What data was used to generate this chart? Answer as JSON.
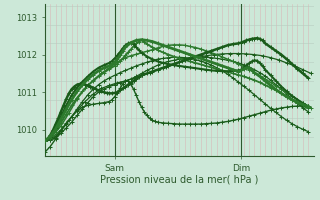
{
  "xlabel": "Pression niveau de la mer( hPa )",
  "bg_color": "#cce8d8",
  "grid_color_v": "#d8b8b8",
  "grid_color_h": "#b8ccc0",
  "line_color_dark": "#1a5c1a",
  "line_color_mid": "#2d7a2d",
  "ylim": [
    1009.3,
    1013.35
  ],
  "xlim": [
    0,
    100
  ],
  "sam_x": 26,
  "dim_x": 73,
  "tick_color": "#2d5a2d",
  "yticks": [
    1010,
    1011,
    1012,
    1013
  ],
  "series": [
    {
      "color": "#1a5c1a",
      "lw": 0.9,
      "x": [
        0,
        2,
        4,
        6,
        8,
        10,
        12,
        14,
        16,
        18,
        20,
        22,
        24,
        26,
        28,
        30,
        32,
        34,
        36,
        38,
        40,
        42,
        44,
        46,
        48,
        50,
        52,
        54,
        56,
        58,
        60,
        62,
        64,
        66,
        68,
        70,
        72,
        74,
        76,
        78,
        80,
        82,
        84,
        86,
        88,
        90,
        92,
        94,
        96,
        98
      ],
      "y": [
        1009.7,
        1009.72,
        1009.78,
        1009.9,
        1010.05,
        1010.2,
        1010.38,
        1010.55,
        1010.72,
        1010.88,
        1011.0,
        1011.08,
        1011.15,
        1011.2,
        1011.25,
        1011.3,
        1011.35,
        1011.42,
        1011.5,
        1011.58,
        1011.65,
        1011.72,
        1011.78,
        1011.82,
        1011.85,
        1011.88,
        1011.9,
        1011.92,
        1011.93,
        1011.93,
        1011.93,
        1011.92,
        1011.9,
        1011.88,
        1011.85,
        1011.82,
        1011.78,
        1011.73,
        1011.67,
        1011.6,
        1011.52,
        1011.43,
        1011.32,
        1011.2,
        1011.08,
        1010.95,
        1010.82,
        1010.7,
        1010.58,
        1010.48
      ]
    },
    {
      "color": "#1a5c1a",
      "lw": 0.9,
      "x": [
        0,
        2,
        4,
        6,
        8,
        10,
        12,
        14,
        16,
        18,
        20,
        22,
        24,
        26,
        28,
        30,
        32,
        34,
        36,
        38,
        40,
        42,
        44,
        46,
        48,
        50,
        52,
        54,
        56,
        58,
        60,
        62,
        64,
        66,
        68,
        70,
        72,
        74,
        76,
        78,
        80,
        82,
        84,
        86,
        88,
        90,
        92,
        94,
        96,
        98
      ],
      "y": [
        1009.7,
        1009.73,
        1009.82,
        1009.97,
        1010.15,
        1010.35,
        1010.55,
        1010.75,
        1010.93,
        1011.08,
        1011.2,
        1011.3,
        1011.38,
        1011.45,
        1011.52,
        1011.58,
        1011.64,
        1011.7,
        1011.75,
        1011.8,
        1011.84,
        1011.88,
        1011.9,
        1011.92,
        1011.93,
        1011.93,
        1011.92,
        1011.9,
        1011.87,
        1011.83,
        1011.78,
        1011.72,
        1011.65,
        1011.57,
        1011.48,
        1011.38,
        1011.27,
        1011.16,
        1011.05,
        1010.93,
        1010.81,
        1010.69,
        1010.57,
        1010.46,
        1010.35,
        1010.25,
        1010.16,
        1010.08,
        1010.01,
        1009.95
      ]
    },
    {
      "color": "#1a5c1a",
      "lw": 0.9,
      "x": [
        0,
        3,
        6,
        9,
        12,
        15,
        18,
        21,
        24,
        27,
        30,
        33,
        36,
        39,
        42,
        45,
        48,
        51,
        54,
        57,
        60,
        63,
        66,
        69,
        72,
        75,
        78,
        81,
        84,
        87,
        90,
        93,
        96,
        99
      ],
      "y": [
        1009.7,
        1009.8,
        1010.0,
        1010.25,
        1010.52,
        1010.75,
        1010.95,
        1011.1,
        1011.18,
        1011.25,
        1011.3,
        1011.37,
        1011.45,
        1011.52,
        1011.6,
        1011.68,
        1011.75,
        1011.82,
        1011.88,
        1011.93,
        1011.97,
        1012.0,
        1012.02,
        1012.03,
        1012.03,
        1012.02,
        1012.0,
        1011.97,
        1011.92,
        1011.86,
        1011.78,
        1011.7,
        1011.6,
        1011.5
      ]
    },
    {
      "color": "#2d7a2d",
      "lw": 1.1,
      "x": [
        0,
        3,
        6,
        9,
        12,
        15,
        18,
        21,
        24,
        27,
        30,
        32,
        34,
        36,
        38,
        40,
        42,
        44,
        46,
        48,
        50,
        52,
        54,
        56,
        58,
        60,
        62,
        64,
        66,
        68,
        70,
        72,
        74,
        76,
        78,
        80,
        82,
        84,
        86,
        88,
        90,
        92,
        94,
        96,
        99
      ],
      "y": [
        1009.7,
        1009.85,
        1010.1,
        1010.45,
        1010.82,
        1011.1,
        1011.32,
        1011.5,
        1011.65,
        1011.8,
        1011.92,
        1011.97,
        1012.01,
        1012.05,
        1012.09,
        1012.13,
        1012.18,
        1012.22,
        1012.25,
        1012.26,
        1012.26,
        1012.25,
        1012.22,
        1012.19,
        1012.15,
        1012.1,
        1012.05,
        1012.0,
        1011.94,
        1011.88,
        1011.82,
        1011.75,
        1011.68,
        1011.6,
        1011.52,
        1011.44,
        1011.35,
        1011.26,
        1011.17,
        1011.08,
        1010.99,
        1010.9,
        1010.8,
        1010.72,
        1010.58
      ]
    },
    {
      "color": "#2d7a2d",
      "lw": 1.3,
      "x": [
        0,
        2,
        4,
        6,
        8,
        10,
        12,
        14,
        16,
        18,
        20,
        22,
        24,
        26,
        27,
        28,
        29,
        30,
        31,
        32,
        33,
        34,
        35,
        36,
        37,
        38,
        40,
        42,
        44,
        46,
        48,
        50,
        52,
        54,
        56,
        58,
        60,
        62,
        64,
        66,
        68,
        70,
        72,
        74,
        76,
        78,
        80,
        82,
        84,
        86,
        88,
        90,
        92,
        94,
        96,
        98
      ],
      "y": [
        1009.7,
        1009.78,
        1009.95,
        1010.18,
        1010.42,
        1010.65,
        1010.85,
        1011.02,
        1011.18,
        1011.3,
        1011.42,
        1011.52,
        1011.62,
        1011.7,
        1011.76,
        1011.83,
        1011.9,
        1011.98,
        1012.06,
        1012.14,
        1012.22,
        1012.3,
        1012.35,
        1012.38,
        1012.35,
        1012.28,
        1012.2,
        1012.12,
        1012.06,
        1012.0,
        1011.95,
        1011.9,
        1011.86,
        1011.82,
        1011.78,
        1011.74,
        1011.7,
        1011.66,
        1011.62,
        1011.58,
        1011.54,
        1011.5,
        1011.46,
        1011.42,
        1011.37,
        1011.32,
        1011.26,
        1011.19,
        1011.12,
        1011.05,
        1010.97,
        1010.88,
        1010.79,
        1010.71,
        1010.63,
        1010.57
      ]
    },
    {
      "color": "#1a5c1a",
      "lw": 1.5,
      "x": [
        0,
        2,
        4,
        6,
        8,
        10,
        12,
        14,
        16,
        18,
        20,
        22,
        24,
        25,
        26,
        27,
        28,
        29,
        30,
        31,
        32,
        33,
        34,
        35,
        36,
        38,
        40,
        42,
        44,
        46,
        48,
        50,
        52,
        54,
        56,
        58,
        60,
        62,
        64,
        66,
        68,
        70,
        72,
        73,
        74,
        75,
        76,
        77,
        78,
        79,
        80,
        81,
        82,
        84,
        86,
        88,
        90,
        92,
        94,
        96,
        98
      ],
      "y": [
        1009.7,
        1009.82,
        1010.05,
        1010.35,
        1010.65,
        1010.92,
        1011.12,
        1011.28,
        1011.42,
        1011.55,
        1011.65,
        1011.72,
        1011.78,
        1011.83,
        1011.9,
        1011.98,
        1012.07,
        1012.17,
        1012.25,
        1012.3,
        1012.32,
        1012.28,
        1012.2,
        1012.12,
        1012.05,
        1011.95,
        1011.88,
        1011.82,
        1011.78,
        1011.75,
        1011.72,
        1011.7,
        1011.68,
        1011.66,
        1011.64,
        1011.62,
        1011.6,
        1011.58,
        1011.57,
        1011.56,
        1011.56,
        1011.57,
        1011.58,
        1011.6,
        1011.65,
        1011.72,
        1011.77,
        1011.82,
        1011.85,
        1011.84,
        1011.78,
        1011.7,
        1011.6,
        1011.45,
        1011.3,
        1011.15,
        1011.02,
        1010.9,
        1010.8,
        1010.7,
        1010.62
      ]
    },
    {
      "color": "#1a5c1a",
      "lw": 1.8,
      "x": [
        0,
        1,
        2,
        3,
        4,
        5,
        6,
        7,
        8,
        9,
        10,
        11,
        12,
        13,
        14,
        15,
        16,
        17,
        18,
        19,
        20,
        21,
        22,
        23,
        24,
        25,
        26,
        27,
        28,
        29,
        30,
        31,
        32,
        33,
        34,
        35,
        36,
        38,
        40,
        42,
        44,
        46,
        48,
        50,
        52,
        54,
        56,
        58,
        60,
        62,
        64,
        66,
        68,
        70,
        72,
        73,
        74,
        75,
        76,
        77,
        78,
        79,
        80,
        81,
        82,
        84,
        86,
        88,
        90,
        92,
        94,
        96,
        98
      ],
      "y": [
        1009.7,
        1009.75,
        1009.85,
        1009.98,
        1010.14,
        1010.3,
        1010.48,
        1010.65,
        1010.82,
        1010.97,
        1011.08,
        1011.15,
        1011.2,
        1011.22,
        1011.22,
        1011.2,
        1011.18,
        1011.15,
        1011.12,
        1011.08,
        1011.05,
        1011.02,
        1011.0,
        1010.98,
        1010.97,
        1010.97,
        1010.98,
        1011.0,
        1011.05,
        1011.1,
        1011.15,
        1011.2,
        1011.25,
        1011.3,
        1011.35,
        1011.4,
        1011.45,
        1011.5,
        1011.55,
        1011.6,
        1011.65,
        1011.7,
        1011.75,
        1011.8,
        1011.85,
        1011.9,
        1011.95,
        1012.0,
        1012.05,
        1012.1,
        1012.15,
        1012.2,
        1012.25,
        1012.28,
        1012.3,
        1012.32,
        1012.35,
        1012.38,
        1012.4,
        1012.42,
        1012.43,
        1012.44,
        1012.42,
        1012.38,
        1012.3,
        1012.2,
        1012.1,
        1012.0,
        1011.88,
        1011.75,
        1011.62,
        1011.5,
        1011.38
      ]
    },
    {
      "color": "#1a5c1a",
      "lw": 1.0,
      "x": [
        0,
        2,
        4,
        6,
        8,
        10,
        12,
        14,
        16,
        18,
        20,
        22,
        24,
        25,
        26,
        27,
        28,
        29,
        30,
        31,
        32,
        33,
        34,
        35,
        36,
        37,
        38,
        39,
        40,
        41,
        42,
        44,
        46,
        48,
        50,
        52,
        54,
        56,
        58,
        60,
        62,
        64,
        66,
        68,
        70,
        72,
        74,
        76,
        78,
        80,
        82,
        84,
        86,
        88,
        90,
        92,
        94,
        96,
        98
      ],
      "y": [
        1009.4,
        1009.55,
        1009.75,
        1009.97,
        1010.18,
        1010.35,
        1010.5,
        1010.6,
        1010.65,
        1010.68,
        1010.7,
        1010.72,
        1010.75,
        1010.8,
        1010.88,
        1010.98,
        1011.1,
        1011.22,
        1011.3,
        1011.3,
        1011.22,
        1011.08,
        1010.92,
        1010.75,
        1010.6,
        1010.48,
        1010.38,
        1010.3,
        1010.25,
        1010.22,
        1010.2,
        1010.18,
        1010.17,
        1010.16,
        1010.15,
        1010.15,
        1010.15,
        1010.15,
        1010.15,
        1010.16,
        1010.17,
        1010.18,
        1010.2,
        1010.22,
        1010.25,
        1010.28,
        1010.32,
        1010.36,
        1010.4,
        1010.44,
        1010.48,
        1010.52,
        1010.55,
        1010.58,
        1010.6,
        1010.62,
        1010.63,
        1010.64,
        1010.64
      ]
    },
    {
      "color": "#2d7a2d",
      "lw": 2.0,
      "x": [
        0,
        2,
        4,
        6,
        8,
        10,
        12,
        14,
        16,
        18,
        20,
        22,
        24,
        25,
        26,
        27,
        28,
        29,
        30,
        32,
        34,
        36,
        38,
        40,
        42,
        44,
        46,
        48,
        50,
        52,
        54,
        56,
        58,
        60,
        62,
        64,
        66,
        68,
        70,
        72,
        73,
        74,
        75,
        76,
        77,
        78,
        80,
        82,
        84,
        86,
        88,
        90,
        92,
        94,
        96,
        98
      ],
      "y": [
        1009.7,
        1009.82,
        1010.02,
        1010.28,
        1010.55,
        1010.8,
        1011.02,
        1011.2,
        1011.35,
        1011.47,
        1011.57,
        1011.65,
        1011.7,
        1011.75,
        1011.8,
        1011.88,
        1011.98,
        1012.1,
        1012.2,
        1012.32,
        1012.38,
        1012.4,
        1012.38,
        1012.35,
        1012.3,
        1012.25,
        1012.2,
        1012.15,
        1012.1,
        1012.05,
        1012.0,
        1011.95,
        1011.9,
        1011.85,
        1011.8,
        1011.75,
        1011.7,
        1011.65,
        1011.6,
        1011.55,
        1011.58,
        1011.62,
        1011.65,
        1011.65,
        1011.6,
        1011.52,
        1011.42,
        1011.3,
        1011.18,
        1011.07,
        1010.97,
        1010.88,
        1010.8,
        1010.73,
        1010.67,
        1010.62
      ]
    }
  ]
}
